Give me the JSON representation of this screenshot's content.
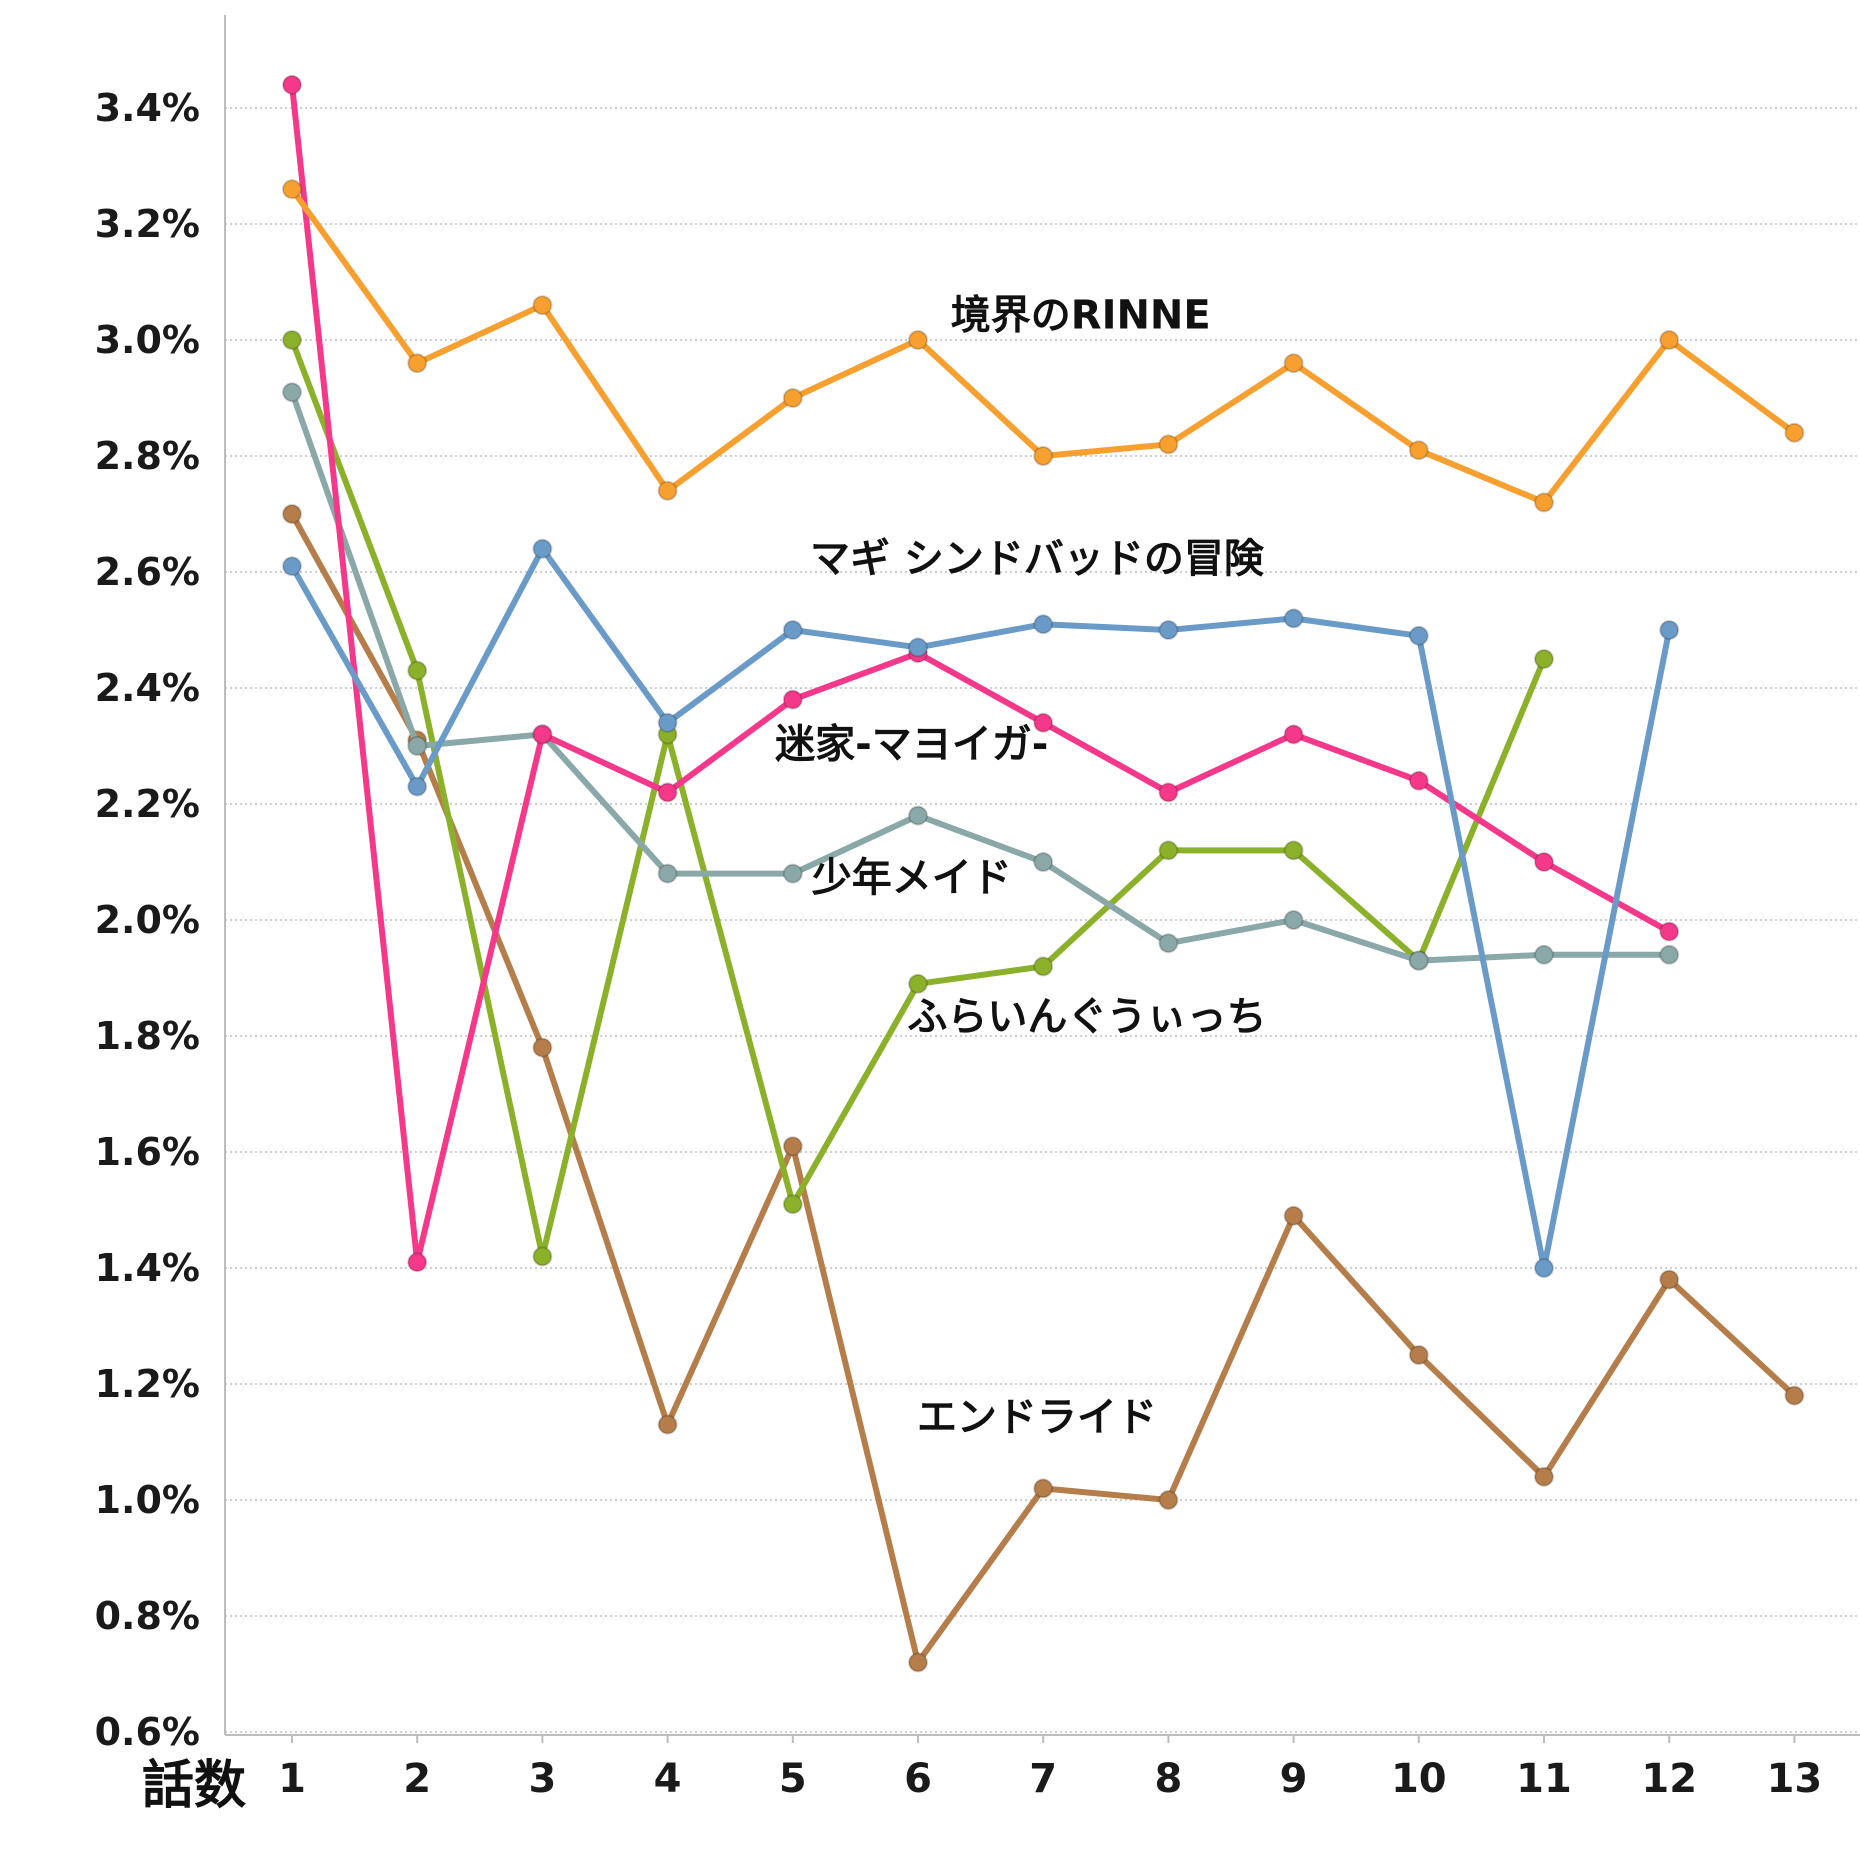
{
  "chart_data": {
    "type": "line",
    "title": "",
    "xlabel": "話数",
    "ylabel": "",
    "x": [
      1,
      2,
      3,
      4,
      5,
      6,
      7,
      8,
      9,
      10,
      11,
      12,
      13
    ],
    "x_tick_labels": [
      "1",
      "2",
      "3",
      "4",
      "5",
      "6",
      "7",
      "8",
      "9",
      "10",
      "11",
      "12",
      "13"
    ],
    "ylim": [
      0.6,
      3.45
    ],
    "y_ticks": [
      0.6,
      0.8,
      1.0,
      1.2,
      1.4,
      1.6,
      1.8,
      2.0,
      2.2,
      2.4,
      2.6,
      2.8,
      3.0,
      3.2,
      3.4
    ],
    "y_tick_labels": [
      "0.6%",
      "0.8%",
      "1.0%",
      "1.2%",
      "1.4%",
      "1.6%",
      "1.8%",
      "2.0%",
      "2.2%",
      "2.4%",
      "2.6%",
      "2.8%",
      "3.0%",
      "3.2%",
      "3.4%"
    ],
    "grid": true,
    "legend": "none",
    "series": [
      {
        "name": "境界のRINNE",
        "color": "#f7a030",
        "values": [
          3.26,
          2.96,
          3.06,
          2.74,
          2.9,
          3.0,
          2.8,
          2.82,
          2.96,
          2.81,
          2.72,
          3.0,
          2.84
        ]
      },
      {
        "name": "マギ シンドバッドの冒険",
        "color": "#6a9bc8",
        "values": [
          2.61,
          2.23,
          2.64,
          2.34,
          2.5,
          2.47,
          2.51,
          2.5,
          2.52,
          2.49,
          1.4,
          2.5,
          null
        ]
      },
      {
        "name": "迷家-マヨイガ-",
        "color": "#f5388a",
        "values": [
          3.44,
          1.41,
          2.32,
          2.22,
          2.38,
          2.46,
          2.34,
          2.22,
          2.32,
          2.24,
          2.1,
          1.98,
          null
        ]
      },
      {
        "name": "少年メイド",
        "color": "#8aa8a8",
        "values": [
          2.91,
          2.3,
          2.32,
          2.08,
          2.08,
          2.18,
          2.1,
          1.96,
          2.0,
          1.93,
          1.94,
          1.94,
          null
        ]
      },
      {
        "name": "ふらいんぐうぃっち",
        "color": "#8bb02a",
        "values": [
          3.0,
          2.43,
          1.42,
          2.32,
          1.51,
          1.89,
          1.92,
          2.12,
          2.12,
          1.93,
          2.45,
          null,
          null
        ]
      },
      {
        "name": "エンドライド",
        "color": "#b57d4a",
        "values": [
          2.7,
          2.31,
          1.78,
          1.13,
          1.61,
          0.72,
          1.02,
          1.0,
          1.49,
          1.25,
          1.04,
          1.38,
          1.18
        ]
      }
    ],
    "annotations": [
      {
        "text": "境界のRINNE",
        "series": 0,
        "near_x": 7.3,
        "near_y": 3.02
      },
      {
        "text": "マギ シンドバッドの冒険",
        "series": 1,
        "near_x": 6.95,
        "near_y": 2.6
      },
      {
        "text": "迷家-マヨイガ-",
        "series": 2,
        "near_x": 5.95,
        "near_y": 2.28
      },
      {
        "text": "少年メイド",
        "series": 3,
        "near_x": 5.95,
        "near_y": 2.05
      },
      {
        "text": "ふらいんぐうぃっち",
        "series": 4,
        "near_x": 7.35,
        "near_y": 1.81
      },
      {
        "text": "エンドライド",
        "series": 5,
        "near_x": 6.95,
        "near_y": 1.12
      }
    ]
  }
}
